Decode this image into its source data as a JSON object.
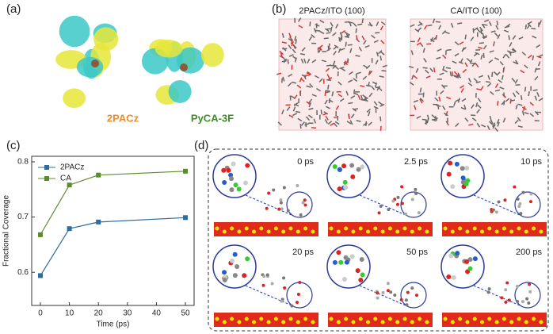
{
  "panel_a": {
    "label": "(a)",
    "molecules": [
      "2PACz",
      "PyCA-3F"
    ]
  },
  "panel_b": {
    "label": "(b)",
    "titles": [
      "2PACz/ITO (100)",
      "CA/ITO (100)"
    ]
  },
  "panel_c": {
    "label": "(c)"
  },
  "panel_d": {
    "label": "(d)",
    "times": [
      "0 ps",
      "2.5 ps",
      "10 ps",
      "20 ps",
      "50 ps",
      "200 ps"
    ]
  },
  "chart_data": {
    "type": "line",
    "xlabel": "Time (ps)",
    "ylabel": "Fractional Coverage",
    "x": [
      0,
      10,
      20,
      50
    ],
    "series": [
      {
        "name": "2PACz",
        "color": "#2a6d9e",
        "values": [
          0.594,
          0.679,
          0.691,
          0.699
        ]
      },
      {
        "name": "CA",
        "color": "#5b8c2a",
        "values": [
          0.668,
          0.758,
          0.776,
          0.783
        ]
      }
    ],
    "xlim": [
      -3,
      53
    ],
    "xticks": [
      0,
      10,
      20,
      30,
      40,
      50
    ],
    "ylim": [
      0.54,
      0.81
    ],
    "yticks": [
      0.6,
      0.7,
      0.8
    ],
    "legend": "upper left"
  }
}
